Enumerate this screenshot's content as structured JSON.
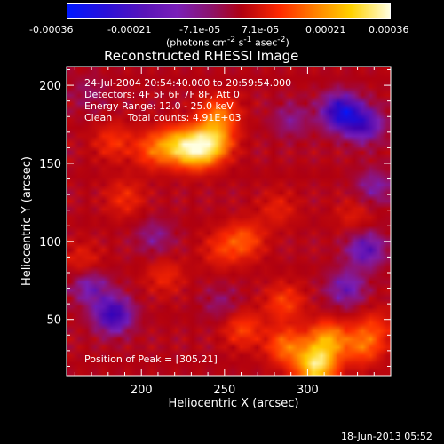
{
  "colorbar": {
    "ticks": [
      "-0.00036",
      "-0.00021",
      "-7.1e-05",
      "7.1e-05",
      "0.00021",
      "0.00036"
    ],
    "units_html": "(photons cm<sup>-2</sup> s<sup>-1</sup> asec<sup>-2</sup>)"
  },
  "plot": {
    "title": "Reconstructed RHESSI Image",
    "info_lines": [
      "24-Jul-2004 20:54:40.000 to 20:59:54.000",
      "Detectors: 4F 5F 6F 7F 8F, Att 0",
      "Energy Range: 12.0 - 25.0 keV",
      "Clean     Total counts: 4.91E+03"
    ],
    "peak_text": "Position of Peak = [305,21]"
  },
  "footer": {
    "date": "18-Jun-2013 05:52"
  },
  "chart_data": {
    "type": "heatmap",
    "title": "Reconstructed RHESSI Image",
    "xlabel": "Heliocentric X (arcsec)",
    "ylabel": "Heliocentric Y (arcsec)",
    "xlim": [
      155,
      350
    ],
    "ylim": [
      14,
      212
    ],
    "xticks": [
      200,
      250,
      300
    ],
    "yticks": [
      50,
      100,
      150,
      200
    ],
    "colorbar_range": [
      -0.00036,
      0.00036
    ],
    "colorbar_label": "(photons cm-2 s-1 asec-2)",
    "colormap": [
      "#0018ff",
      "#3c00b0",
      "#7a1fb8",
      "#b00010",
      "#ff2a00",
      "#ff8a00",
      "#ffd200",
      "#ffffe0"
    ],
    "sources": [
      {
        "x": 233,
        "y": 159,
        "value": 0.00032
      },
      {
        "x": 243,
        "y": 164,
        "value": 0.00026
      },
      {
        "x": 221,
        "y": 162,
        "value": 0.00022
      },
      {
        "x": 246,
        "y": 181,
        "value": 0.00018
      },
      {
        "x": 207,
        "y": 159,
        "value": 0.00014
      },
      {
        "x": 305,
        "y": 21,
        "value": 0.00036
      },
      {
        "x": 312,
        "y": 37,
        "value": 0.00024
      },
      {
        "x": 287,
        "y": 33,
        "value": 0.00018
      },
      {
        "x": 261,
        "y": 44,
        "value": 0.00012
      },
      {
        "x": 286,
        "y": 61,
        "value": 0.00012
      },
      {
        "x": 333,
        "y": 33,
        "value": 0.00016
      },
      {
        "x": 262,
        "y": 101,
        "value": 0.00014
      },
      {
        "x": 248,
        "y": 95,
        "value": 9e-05
      },
      {
        "x": 214,
        "y": 78,
        "value": 8e-05
      },
      {
        "x": 183,
        "y": 164,
        "value": 0.0001
      },
      {
        "x": 190,
        "y": 128,
        "value": 9e-05
      },
      {
        "x": 165,
        "y": 88,
        "value": 7e-05
      },
      {
        "x": 282,
        "y": 121,
        "value": 7e-05
      },
      {
        "x": 328,
        "y": 117,
        "value": 6e-05
      },
      {
        "x": 340,
        "y": 45,
        "value": 9e-05
      },
      {
        "x": 320,
        "y": 183,
        "value": -0.00026
      },
      {
        "x": 334,
        "y": 175,
        "value": -0.00018
      },
      {
        "x": 183,
        "y": 53,
        "value": -0.00022
      },
      {
        "x": 169,
        "y": 71,
        "value": -0.00012
      },
      {
        "x": 335,
        "y": 95,
        "value": -0.00016
      },
      {
        "x": 340,
        "y": 135,
        "value": -0.0001
      },
      {
        "x": 323,
        "y": 70,
        "value": -0.00013
      },
      {
        "x": 248,
        "y": 60,
        "value": -6e-05
      },
      {
        "x": 208,
        "y": 103,
        "value": -8e-05
      },
      {
        "x": 290,
        "y": 178,
        "value": -8e-05
      },
      {
        "x": 168,
        "y": 195,
        "value": -5e-05
      }
    ]
  }
}
